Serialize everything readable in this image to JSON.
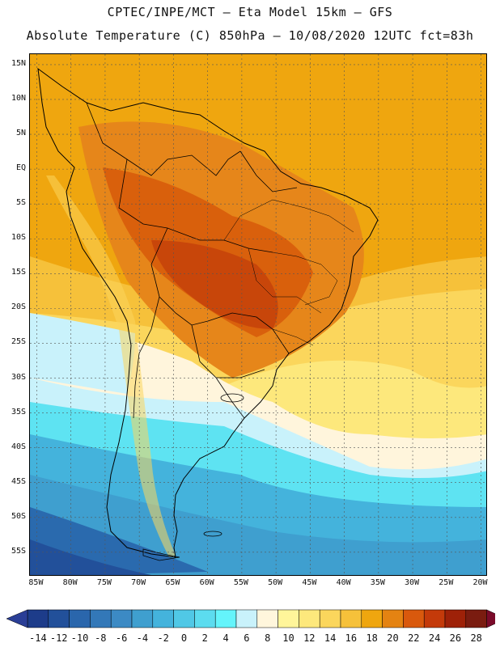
{
  "title": {
    "line1": "CPTEC/INPE/MCT –  Eta Model 15km – GFS",
    "line2": "Absolute Temperature (C) 850hPa – 10/08/2020 12UTC fct=83h"
  },
  "map": {
    "region": "South America",
    "variable": "Absolute Temperature (C) 850hPa",
    "lon_range": [
      -86,
      -19
    ],
    "lat_range": [
      16.5,
      -58.5
    ],
    "lat_ticks": [
      "15N",
      "10N",
      "5N",
      "EQ",
      "5S",
      "10S",
      "15S",
      "20S",
      "25S",
      "30S",
      "35S",
      "40S",
      "45S",
      "50S",
      "55S"
    ],
    "lat_values": [
      15,
      10,
      5,
      0,
      -5,
      -10,
      -15,
      -20,
      -25,
      -30,
      -35,
      -40,
      -45,
      -50,
      -55
    ],
    "lon_ticks": [
      "85W",
      "80W",
      "75W",
      "70W",
      "65W",
      "60W",
      "55W",
      "50W",
      "45W",
      "40W",
      "35W",
      "30W",
      "25W",
      "20W"
    ],
    "lon_values": [
      -85,
      -80,
      -75,
      -70,
      -65,
      -60,
      -55,
      -50,
      -45,
      -40,
      -35,
      -30,
      -25,
      -20
    ]
  },
  "colorbar": {
    "labels": [
      "-14",
      "-12",
      "-10",
      "-8",
      "-6",
      "-4",
      "-2",
      "0",
      "2",
      "4",
      "6",
      "8",
      "10",
      "12",
      "14",
      "16",
      "18",
      "20",
      "22",
      "24",
      "26",
      "28"
    ],
    "colors": [
      "#1d3c8a",
      "#22509a",
      "#2a66ac",
      "#3378b8",
      "#3c8ac4",
      "#3f9fcf",
      "#44b3dc",
      "#50c8e6",
      "#5cdcef",
      "#64f4fb",
      "#c9f2fb",
      "#fff6dc",
      "#fff59a",
      "#fde87c",
      "#fbd65c",
      "#f6c13a",
      "#efa60f",
      "#e48312",
      "#d9590d",
      "#c43a0a",
      "#9e2108",
      "#7a1c10"
    ],
    "low_arrow_color": "#2a3e96",
    "high_arrow_color": "#7a0a2a"
  },
  "palette": {
    "ocean_warm": "#f0a90e",
    "ocean_mid": "#f7c342",
    "ocean_light": "#fde38a",
    "cream": "#fff5dc",
    "cyan": "#5ee3f2",
    "blue_mid": "#3f9fcf",
    "blue_dark": "#2a6aae",
    "land_hot": "#d9600c",
    "land_hotter": "#c8460a",
    "land_warm": "#e6861a",
    "border": "#000000"
  }
}
